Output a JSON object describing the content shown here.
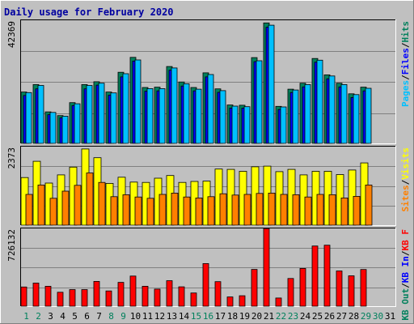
{
  "chart_data": {
    "type": "bar",
    "title": "Daily usage for February 2020",
    "days": [
      "1",
      "2",
      "3",
      "4",
      "5",
      "6",
      "7",
      "8",
      "9",
      "10",
      "11",
      "12",
      "13",
      "14",
      "15",
      "16",
      "17",
      "18",
      "19",
      "20",
      "21",
      "22",
      "23",
      "24",
      "25",
      "26",
      "27",
      "28",
      "29",
      "30",
      "31"
    ],
    "weekend_days": [
      "1",
      "2",
      "8",
      "9",
      "15",
      "16",
      "22",
      "23",
      "29",
      "30"
    ],
    "colors": {
      "hits": "#00805c",
      "files": "#0000ff",
      "pages": "#00c0ff",
      "visits": "#ffff00",
      "sites": "#ff8000",
      "kbf": "#ff0000",
      "kbin": "#0000ff",
      "kbout": "#00805c",
      "weekend_tick": "#00805c",
      "weekday_tick": "#000000",
      "background": "#c0c0c0"
    },
    "panels": [
      {
        "name": "hits-files-pages",
        "max_label": "42369",
        "ymax": 42369,
        "legend": [
          {
            "text": "Hits",
            "color": "#00805c"
          },
          {
            "text": "/",
            "color": "#000000"
          },
          {
            "text": "Files",
            "color": "#0000ff"
          },
          {
            "text": "/",
            "color": "#000000"
          },
          {
            "text": "Pages",
            "color": "#00c0ff"
          }
        ],
        "series": [
          {
            "name": "Hits",
            "color": "#00805c",
            "values": [
              17900,
              20500,
              11000,
              9700,
              14200,
              20500,
              21500,
              17900,
              24800,
              30000,
              19500,
              19600,
              26800,
              21400,
              19500,
              24600,
              19000,
              13400,
              13300,
              29900,
              42000,
              12900,
              18900,
              21000,
              29600,
              23900,
              21000,
              17300,
              19600,
              0,
              0
            ]
          },
          {
            "name": "Files",
            "color": "#0000ff",
            "values": [
              16700,
              19000,
              10000,
              8900,
              13200,
              19000,
              20300,
              16800,
              23200,
              28700,
              18200,
              18300,
              25500,
              20000,
              18300,
              23200,
              17800,
              12300,
              12300,
              28500,
              40500,
              11800,
              17700,
              19700,
              28300,
              22500,
              19700,
              16000,
              18300,
              0,
              0
            ]
          },
          {
            "name": "Pages",
            "color": "#00c0ff",
            "values": [
              17700,
              20200,
              10800,
              9500,
              13800,
              20200,
              21000,
              17600,
              24300,
              29100,
              19100,
              19100,
              26300,
              20800,
              18900,
              24000,
              18400,
              13000,
              12800,
              28800,
              41200,
              12700,
              18600,
              20500,
              29000,
              23500,
              20500,
              17000,
              19200,
              0,
              0
            ]
          }
        ]
      },
      {
        "name": "visits-sites",
        "max_label": "2373",
        "ymax": 2373,
        "legend": [
          {
            "text": "Visits",
            "color": "#ffff00"
          },
          {
            "text": "/",
            "color": "#000000"
          },
          {
            "text": "Sites",
            "color": "#ff8000"
          }
        ],
        "series": [
          {
            "name": "Visits",
            "color": "#ffff00",
            "values": [
              1470,
              1970,
              1300,
              1550,
              1790,
              2350,
              2080,
              1290,
              1480,
              1330,
              1320,
              1450,
              1530,
              1320,
              1350,
              1360,
              1730,
              1720,
              1660,
              1800,
              1820,
              1650,
              1720,
              1550,
              1660,
              1660,
              1560,
              1700,
              1920,
              0,
              0
            ]
          },
          {
            "name": "Sites",
            "color": "#ff8000",
            "values": [
              950,
              1240,
              830,
              1050,
              1230,
              1610,
              1320,
              880,
              940,
              870,
              830,
              950,
              990,
              870,
              840,
              880,
              970,
              930,
              950,
              980,
              990,
              950,
              940,
              870,
              950,
              940,
              840,
              890,
              1240,
              0,
              0
            ]
          }
        ]
      },
      {
        "name": "kbf-kbin-kbout",
        "max_label": "726132",
        "ymax": 726132,
        "legend": [
          {
            "text": "KB F",
            "color": "#ff0000"
          },
          {
            "text": "/",
            "color": "#000000"
          },
          {
            "text": "KB In",
            "color": "#0000ff"
          },
          {
            "text": "/",
            "color": "#000000"
          },
          {
            "text": "KB Out",
            "color": "#00805c"
          }
        ],
        "series": [
          {
            "name": "KB F",
            "color": "#ff0000",
            "values": [
              183000,
              220000,
              190000,
              133000,
              158000,
              158000,
              236000,
              145000,
              227000,
              287000,
              190000,
              163000,
              243000,
              185000,
              126000,
              406000,
              234000,
              88000,
              100000,
              351000,
              740000,
              78000,
              264000,
              360000,
              574000,
              582000,
              336000,
              290000,
              350000,
              0,
              0
            ]
          },
          {
            "name": "KB In",
            "color": "#0000ff",
            "values": [
              0,
              0,
              0,
              0,
              0,
              0,
              0,
              0,
              0,
              0,
              0,
              0,
              0,
              0,
              0,
              0,
              0,
              0,
              0,
              0,
              0,
              0,
              0,
              0,
              0,
              0,
              0,
              0,
              0,
              0,
              0
            ]
          },
          {
            "name": "KB Out",
            "color": "#00805c",
            "values": [
              0,
              0,
              0,
              0,
              0,
              0,
              0,
              0,
              0,
              0,
              0,
              0,
              0,
              0,
              0,
              0,
              0,
              0,
              0,
              0,
              0,
              0,
              0,
              0,
              0,
              0,
              0,
              0,
              0,
              0,
              0
            ]
          }
        ]
      }
    ]
  }
}
